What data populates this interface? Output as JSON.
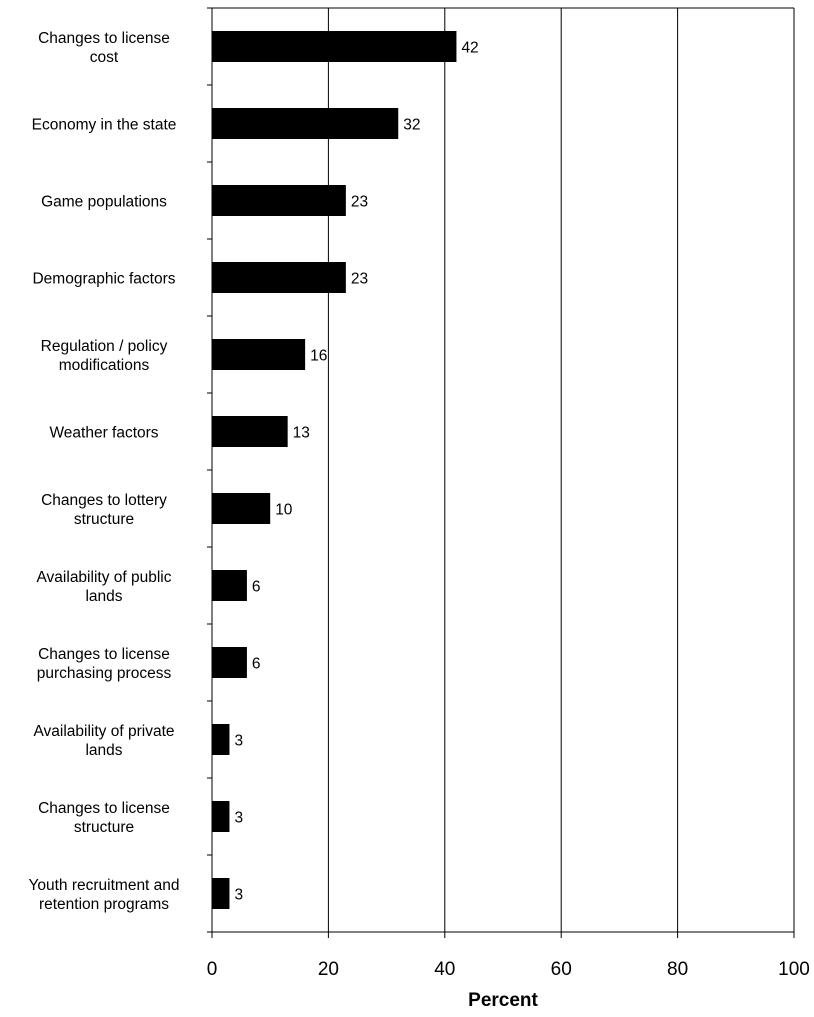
{
  "chart_data": {
    "type": "bar",
    "orientation": "horizontal",
    "categories": [
      [
        "Changes to license",
        "cost"
      ],
      [
        "Economy in the state"
      ],
      [
        "Game populations"
      ],
      [
        "Demographic factors"
      ],
      [
        "Regulation / policy",
        "modifications"
      ],
      [
        "Weather factors"
      ],
      [
        "Changes to lottery",
        "structure"
      ],
      [
        "Availability of public",
        "lands"
      ],
      [
        "Changes to license",
        "purchasing process"
      ],
      [
        "Availability of private",
        "lands"
      ],
      [
        "Changes to license",
        "structure"
      ],
      [
        "Youth recruitment and",
        "retention programs"
      ]
    ],
    "values": [
      42,
      32,
      23,
      23,
      16,
      13,
      10,
      6,
      6,
      3,
      3,
      3
    ],
    "xlim": [
      0,
      100
    ],
    "xticks": [
      0,
      20,
      40,
      60,
      80,
      100
    ],
    "xlabel": "Percent",
    "ylabel": "",
    "grid": "vertical",
    "legend": "none",
    "bar_color": "#000000"
  }
}
